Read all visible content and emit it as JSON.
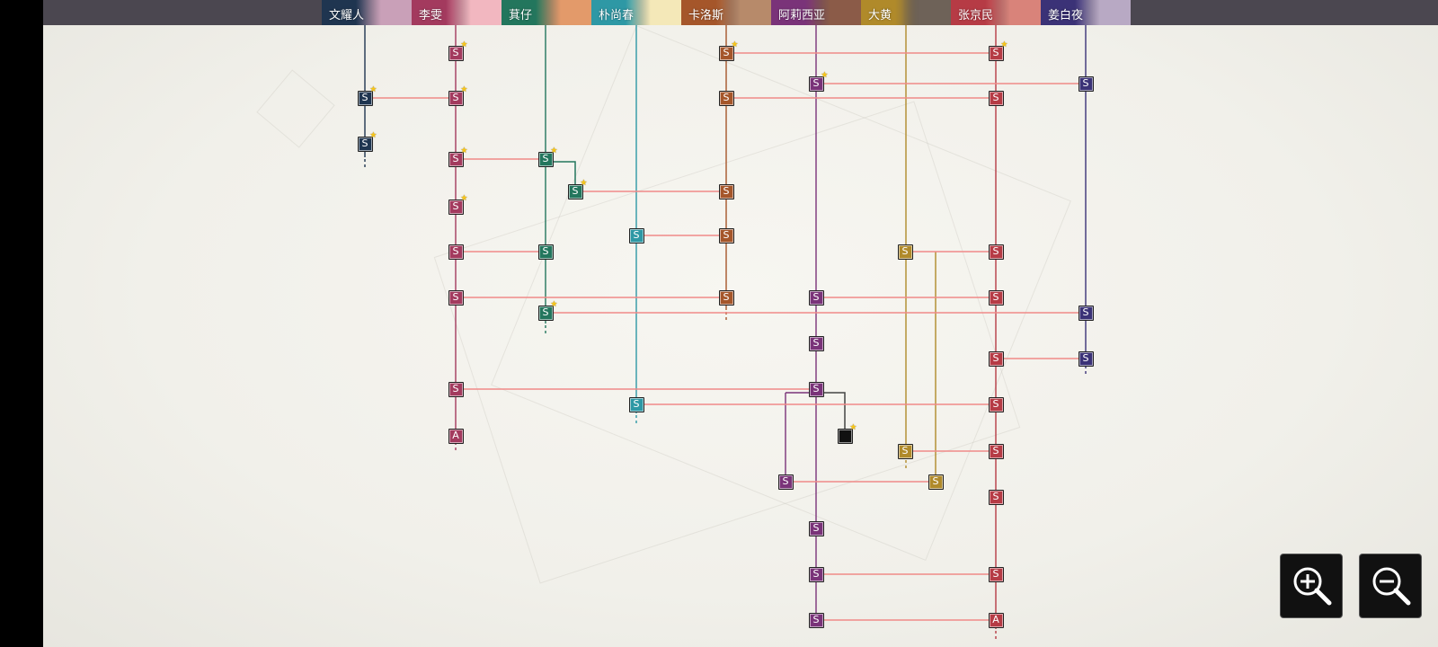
{
  "characters": [
    {
      "id": "wen",
      "name": "文耀人",
      "color": "#1f3550"
    },
    {
      "id": "li",
      "name": "李雯",
      "color": "#a33a5e"
    },
    {
      "id": "qi",
      "name": "萁仔",
      "color": "#23765d"
    },
    {
      "id": "piao",
      "name": "朴尚春",
      "color": "#2e98a5"
    },
    {
      "id": "ka",
      "name": "卡洛斯",
      "color": "#a5562a"
    },
    {
      "id": "a",
      "name": "阿莉西亚",
      "color": "#7a3379"
    },
    {
      "id": "da",
      "name": "大黄",
      "color": "#b08a2a"
    },
    {
      "id": "zhang",
      "name": "张京民",
      "color": "#b63b45"
    },
    {
      "id": "jiang",
      "name": "姜白夜",
      "color": "#3b3277"
    }
  ],
  "node_label_s": "S",
  "node_label_a": "A",
  "colors": {
    "link_line": "#f08a88",
    "wen": "#1f3550",
    "li": "#a33a5e",
    "qi": "#23765d",
    "piao": "#2e98a5",
    "ka": "#a5562a",
    "a": "#7a3379",
    "da": "#b08a2a",
    "zhang": "#b63b45",
    "jiang": "#3b3277",
    "locked": "#111111"
  },
  "zoom_in": {
    "icon": "zoom-in-icon"
  },
  "zoom_out": {
    "icon": "zoom-out-icon"
  }
}
